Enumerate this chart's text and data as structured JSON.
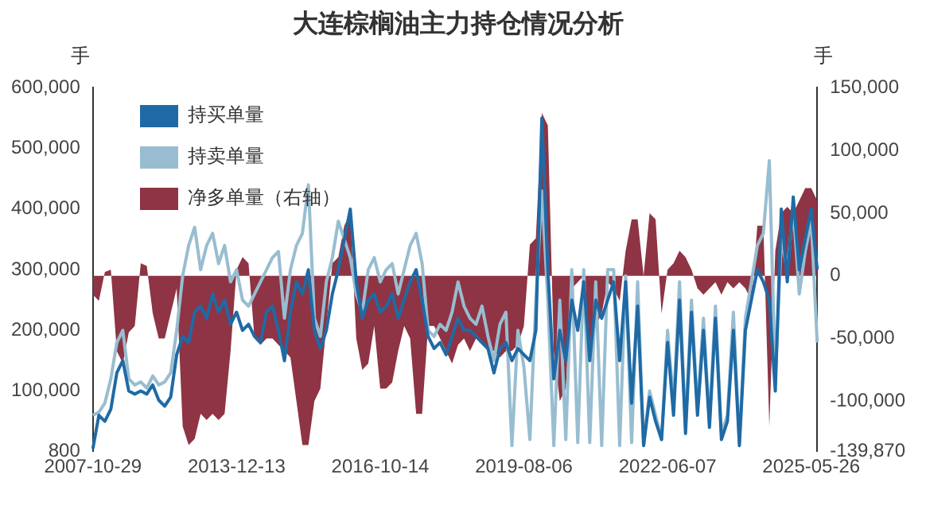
{
  "chart_data": {
    "type": "line",
    "title": "大连棕榈油主力持仓情况分析",
    "ylabel": "手",
    "y2label": "手",
    "categories": [
      "2007-10-29",
      null,
      null,
      null,
      null,
      null,
      null,
      null,
      null,
      null,
      null,
      null,
      null,
      null,
      null,
      null,
      null,
      null,
      null,
      null,
      null,
      null,
      null,
      null,
      "2013-12-13",
      null,
      null,
      null,
      null,
      null,
      null,
      null,
      null,
      null,
      null,
      null,
      null,
      null,
      null,
      null,
      null,
      null,
      null,
      null,
      null,
      null,
      null,
      null,
      "2016-10-14",
      null,
      null,
      null,
      null,
      null,
      null,
      null,
      null,
      null,
      null,
      null,
      null,
      null,
      null,
      null,
      null,
      null,
      null,
      null,
      null,
      null,
      null,
      null,
      "2019-08-06",
      null,
      null,
      null,
      null,
      null,
      null,
      null,
      null,
      null,
      null,
      null,
      null,
      null,
      null,
      null,
      null,
      null,
      null,
      null,
      null,
      null,
      null,
      null,
      "2022-06-07",
      null,
      null,
      null,
      null,
      null,
      null,
      null,
      null,
      null,
      null,
      null,
      null,
      null,
      null,
      null,
      null,
      null,
      null,
      null,
      null,
      null,
      null,
      null,
      "2025-05-26",
      null
    ],
    "series": [
      {
        "name": "净多单量（右轴）",
        "type": "area",
        "axis": "y2",
        "color": "#8e3444",
        "values": [
          -15000,
          -20000,
          3000,
          5000,
          -60000,
          -70000,
          -45000,
          -40000,
          10000,
          8000,
          -30000,
          -50000,
          -50000,
          -30000,
          -10000,
          -120000,
          -135000,
          -130000,
          -110000,
          -115000,
          -110000,
          -115000,
          -110000,
          -60000,
          5000,
          15000,
          10000,
          -50000,
          -55000,
          -50000,
          -50000,
          -55000,
          -60000,
          -65000,
          -100000,
          -135000,
          -135000,
          -100000,
          -90000,
          -40000,
          10000,
          15000,
          40000,
          50000,
          -50000,
          -75000,
          -70000,
          -40000,
          -90000,
          -90000,
          -85000,
          -60000,
          -40000,
          -50000,
          -110000,
          -110000,
          -40000,
          -40000,
          -50000,
          -60000,
          -70000,
          -55000,
          -50000,
          -60000,
          -50000,
          -55000,
          -60000,
          -60000,
          -65000,
          -60000,
          -60000,
          -55000,
          -40000,
          25000,
          30000,
          130000,
          120000,
          -60000,
          -100000,
          -90000,
          -10000,
          -5000,
          0,
          -60000,
          -40000,
          -30000,
          -5000,
          -10000,
          -20000,
          20000,
          45000,
          45000,
          0,
          50000,
          45000,
          -30000,
          5000,
          10000,
          20000,
          15000,
          5000,
          -10000,
          -15000,
          -10000,
          -5000,
          -15000,
          -5000,
          -10000,
          -5000,
          -10000,
          -20000,
          40000,
          40000,
          -120000,
          20000,
          50000,
          55000,
          50000,
          60000,
          70000,
          70000,
          60000
        ]
      },
      {
        "name": "持买单量",
        "color": "#1f6aa5",
        "values": [
          5000,
          60000,
          50000,
          70000,
          130000,
          150000,
          100000,
          95000,
          100000,
          95000,
          110000,
          85000,
          75000,
          90000,
          160000,
          190000,
          180000,
          230000,
          240000,
          220000,
          260000,
          230000,
          250000,
          210000,
          230000,
          200000,
          210000,
          190000,
          180000,
          230000,
          240000,
          200000,
          150000,
          230000,
          280000,
          260000,
          300000,
          200000,
          170000,
          200000,
          260000,
          300000,
          350000,
          400000,
          280000,
          220000,
          250000,
          260000,
          230000,
          240000,
          260000,
          220000,
          250000,
          280000,
          300000,
          250000,
          190000,
          170000,
          180000,
          160000,
          190000,
          220000,
          200000,
          200000,
          190000,
          180000,
          170000,
          130000,
          170000,
          180000,
          150000,
          170000,
          160000,
          150000,
          200000,
          550000,
          300000,
          120000,
          200000,
          150000,
          250000,
          200000,
          280000,
          150000,
          250000,
          220000,
          250000,
          280000,
          150000,
          280000,
          80000,
          240000,
          10000,
          90000,
          50000,
          20000,
          180000,
          60000,
          250000,
          30000,
          230000,
          60000,
          200000,
          40000,
          220000,
          20000,
          50000,
          200000,
          10000,
          200000,
          250000,
          300000,
          280000,
          250000,
          100000,
          400000,
          280000,
          420000,
          300000,
          350000,
          400000,
          300000
        ]
      },
      {
        "name": "持卖单量",
        "color": "#98bdd0",
        "values": [
          60000,
          65000,
          80000,
          120000,
          180000,
          200000,
          120000,
          110000,
          115000,
          105000,
          125000,
          110000,
          115000,
          130000,
          200000,
          290000,
          340000,
          370000,
          300000,
          340000,
          360000,
          310000,
          340000,
          280000,
          300000,
          250000,
          240000,
          260000,
          280000,
          300000,
          320000,
          330000,
          220000,
          300000,
          340000,
          360000,
          440000,
          220000,
          190000,
          280000,
          320000,
          380000,
          350000,
          320000,
          260000,
          230000,
          300000,
          320000,
          280000,
          300000,
          310000,
          260000,
          300000,
          340000,
          360000,
          310000,
          200000,
          190000,
          210000,
          200000,
          230000,
          280000,
          240000,
          220000,
          210000,
          240000,
          190000,
          150000,
          210000,
          230000,
          10000,
          200000,
          140000,
          20000,
          250000,
          430000,
          250000,
          10000,
          250000,
          20000,
          300000,
          15000,
          300000,
          15000,
          280000,
          10000,
          300000,
          300000,
          10000,
          290000,
          15000,
          280000,
          12000,
          100000,
          60000,
          20000,
          200000,
          80000,
          280000,
          40000,
          250000,
          70000,
          220000,
          50000,
          240000,
          30000,
          60000,
          230000,
          15000,
          220000,
          280000,
          340000,
          360000,
          480000,
          120000,
          350000,
          300000,
          400000,
          260000,
          330000,
          380000,
          180000
        ]
      }
    ],
    "ylim": [
      800,
      600000
    ],
    "yticks": [
      800,
      {
        "value": 100000,
        "label": "100,000"
      },
      {
        "value": 200000,
        "label": "200,000"
      },
      {
        "value": 300000,
        "label": "300,000"
      },
      {
        "value": 400000,
        "label": "400,000"
      },
      {
        "value": 500000,
        "label": "500,000"
      },
      {
        "value": 600000,
        "label": "600,000"
      }
    ],
    "y2lim": [
      -139870,
      150000
    ],
    "y2ticks": [
      {
        "value": -139870,
        "label": "-139,870"
      },
      {
        "value": -100000,
        "label": "-100,000"
      },
      {
        "value": -50000,
        "label": "-50,000"
      },
      0,
      {
        "value": 50000,
        "label": "50,000"
      },
      {
        "value": 100000,
        "label": "100,000"
      },
      {
        "value": 150000,
        "label": "150,000"
      }
    ],
    "legend": "top left",
    "grid": false
  }
}
